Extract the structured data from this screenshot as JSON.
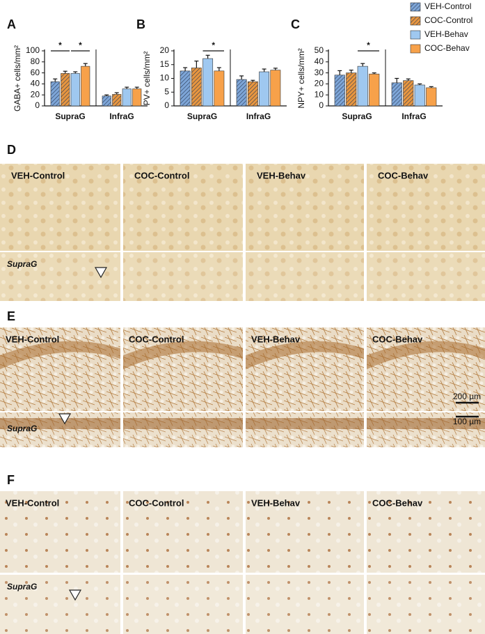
{
  "chart_data": [
    {
      "type": "bar",
      "panel": "A",
      "y_label": "GABA+ cells/mm²",
      "categories": [
        "SupraG",
        "InfraG"
      ],
      "ylim": [
        0,
        100
      ],
      "yticks": [
        0,
        20,
        40,
        60,
        80,
        100
      ],
      "series": [
        {
          "name": "VEH-Control",
          "color": "#7ea6d8",
          "hatch": true,
          "values": [
            44,
            18
          ],
          "errors": [
            5,
            2
          ]
        },
        {
          "name": "COC-Control",
          "color": "#e8963f",
          "hatch": true,
          "values": [
            59,
            21
          ],
          "errors": [
            4,
            3
          ]
        },
        {
          "name": "VEH-Behav",
          "color": "#9fc8f0",
          "hatch": false,
          "values": [
            59,
            31
          ],
          "errors": [
            3,
            3
          ]
        },
        {
          "name": "COC-Behav",
          "color": "#f7a14a",
          "hatch": false,
          "values": [
            72,
            31
          ],
          "errors": [
            5,
            3
          ]
        }
      ],
      "annotations": [
        {
          "text": "*",
          "category": 0,
          "between": [
            0,
            1
          ]
        },
        {
          "text": "*",
          "category": 0,
          "between": [
            2,
            3
          ]
        }
      ]
    },
    {
      "type": "bar",
      "panel": "B",
      "y_label": "PV+ cells/mm²",
      "categories": [
        "SupraG",
        "InfraG"
      ],
      "ylim": [
        0,
        20
      ],
      "yticks": [
        0,
        5,
        10,
        15,
        20
      ],
      "series": [
        {
          "color": "#7ea6d8",
          "hatch": true,
          "values": [
            12.7,
            9.6
          ],
          "errors": [
            1.2,
            1.3
          ]
        },
        {
          "color": "#e8963f",
          "hatch": true,
          "values": [
            13.8,
            8.8
          ],
          "errors": [
            2.5,
            0.5
          ]
        },
        {
          "color": "#9fc8f0",
          "hatch": false,
          "values": [
            17.2,
            12.4
          ],
          "errors": [
            1.2,
            1
          ]
        },
        {
          "color": "#f7a14a",
          "hatch": false,
          "values": [
            12.7,
            13
          ],
          "errors": [
            1.2,
            0.7
          ]
        }
      ],
      "annotations": [
        {
          "text": "*",
          "category": 0,
          "between": [
            2,
            3
          ]
        }
      ]
    },
    {
      "type": "bar",
      "panel": "C",
      "y_label": "NPY+ cells/mm²",
      "categories": [
        "SupraG",
        "InfraG"
      ],
      "ylim": [
        0,
        50
      ],
      "yticks": [
        0,
        10,
        20,
        30,
        40,
        50
      ],
      "series": [
        {
          "color": "#7ea6d8",
          "hatch": true,
          "values": [
            28,
            21
          ],
          "errors": [
            4,
            4
          ]
        },
        {
          "color": "#e8963f",
          "hatch": true,
          "values": [
            30,
            23
          ],
          "errors": [
            2.5,
            1.5
          ]
        },
        {
          "color": "#9fc8f0",
          "hatch": false,
          "values": [
            36,
            19
          ],
          "errors": [
            2.5,
            1
          ]
        },
        {
          "color": "#f7a14a",
          "hatch": false,
          "values": [
            29,
            16.5
          ],
          "errors": [
            1,
            1
          ]
        }
      ],
      "annotations": [
        {
          "text": "*",
          "category": 0,
          "between": [
            2,
            3
          ]
        }
      ]
    }
  ],
  "legend": {
    "position": "top-right"
  },
  "image_panels": [
    {
      "label": "D",
      "columns": [
        "VEH-Control",
        "COC-Control",
        "VEH-Behav",
        "COC-Behav"
      ],
      "inset_label": "SupraG"
    },
    {
      "label": "E",
      "columns": [
        "VEH-Control",
        "COC-Control",
        "VEH-Behav",
        "COC-Behav"
      ],
      "inset_label": "SupraG",
      "scale_bars": [
        "200 µm",
        "100 µm"
      ]
    },
    {
      "label": "F",
      "columns": [
        "VEH-Control",
        "COC-Control",
        "VEH-Behav",
        "COC-Behav"
      ],
      "inset_label": "SupraG"
    }
  ]
}
